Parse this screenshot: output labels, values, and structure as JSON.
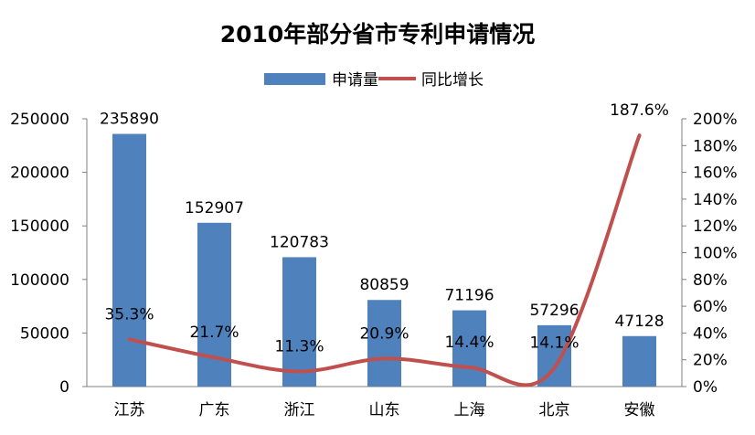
{
  "chart_data": {
    "type": "bar",
    "title": "2010年部分省市专利申请情况",
    "categories": [
      "江苏",
      "广东",
      "浙江",
      "山东",
      "上海",
      "北京",
      "安徽"
    ],
    "series": [
      {
        "name": "申请量",
        "type": "bar",
        "axis": "left",
        "color": "#4f81bd",
        "values": [
          235890,
          152907,
          120783,
          80859,
          71196,
          57296,
          47128
        ],
        "labels": [
          "235890",
          "152907",
          "120783",
          "80859",
          "71196",
          "57296",
          "47128"
        ]
      },
      {
        "name": "同比增长",
        "type": "line",
        "axis": "right",
        "color": "#c0504d",
        "values": [
          35.3,
          21.7,
          11.3,
          20.9,
          14.4,
          14.1,
          187.6
        ],
        "labels": [
          "35.3%",
          "21.7%",
          "11.3%",
          "20.9%",
          "14.4%",
          "14.1%",
          "187.6%"
        ]
      }
    ],
    "y_left": {
      "min": 0,
      "max": 250000,
      "ticks": [
        "0",
        "50000",
        "100000",
        "150000",
        "200000",
        "250000"
      ]
    },
    "y_right": {
      "min": 0,
      "max": 200,
      "ticks": [
        "0%",
        "20%",
        "40%",
        "60%",
        "80%",
        "100%",
        "120%",
        "140%",
        "160%",
        "180%",
        "200%"
      ]
    },
    "xlabel": "",
    "ylabel": "",
    "grid": false,
    "legend_position": "top-center"
  }
}
